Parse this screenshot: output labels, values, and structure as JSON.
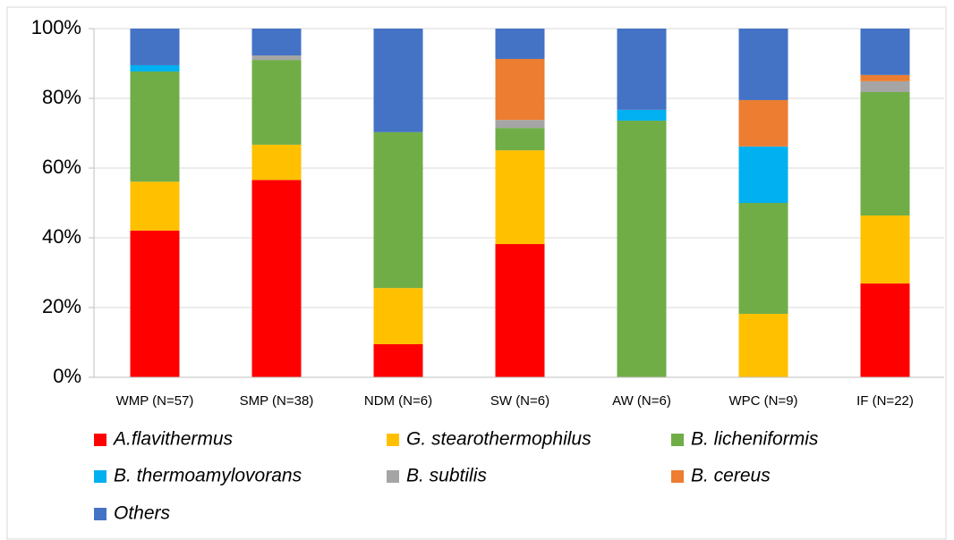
{
  "chart_data": {
    "type": "stacked_bar",
    "categories": [
      "WMP (N=57)",
      "SMP (N=38)",
      "NDM (N=6)",
      "SW (N=6)",
      "AW (N=6)",
      "WPC (N=9)",
      "IF (N=22)"
    ],
    "series": [
      {
        "name": "A.flavithermus",
        "color": "#ff0000",
        "values": [
          42.1,
          56.6,
          9.5,
          38.2,
          0,
          0,
          26.9
        ]
      },
      {
        "name": "G. stearothermophilus",
        "color": "#ffc000",
        "values": [
          14.0,
          10.1,
          16.1,
          26.9,
          0,
          18.2,
          19.5
        ]
      },
      {
        "name": "B. licheniformis",
        "color": "#70ad47",
        "values": [
          31.6,
          24.3,
          44.7,
          6.4,
          73.6,
          31.8,
          35.4
        ]
      },
      {
        "name": "B. thermoamylovorans",
        "color": "#00b0f0",
        "values": [
          1.8,
          0,
          0,
          0,
          3.1,
          16.2,
          0
        ]
      },
      {
        "name": "B. subtilis",
        "color": "#a5a5a5",
        "values": [
          0,
          1.3,
          0,
          2.3,
          0,
          0,
          3.1
        ]
      },
      {
        "name": "B. cereus",
        "color": "#ed7d31",
        "values": [
          0,
          0,
          0,
          17.5,
          0,
          13.3,
          1.8
        ]
      },
      {
        "name": "Others",
        "color": "#4472c4",
        "values": [
          10.5,
          7.7,
          29.7,
          8.7,
          23.3,
          20.5,
          13.3
        ]
      }
    ],
    "ylim": [
      0,
      100
    ],
    "yticks": [
      {
        "value": 0,
        "label": "0%"
      },
      {
        "value": 20,
        "label": "20%"
      },
      {
        "value": 40,
        "label": "40%"
      },
      {
        "value": 60,
        "label": "60%"
      },
      {
        "value": 80,
        "label": "80%"
      },
      {
        "value": 100,
        "label": "100%"
      }
    ],
    "grid": true
  }
}
